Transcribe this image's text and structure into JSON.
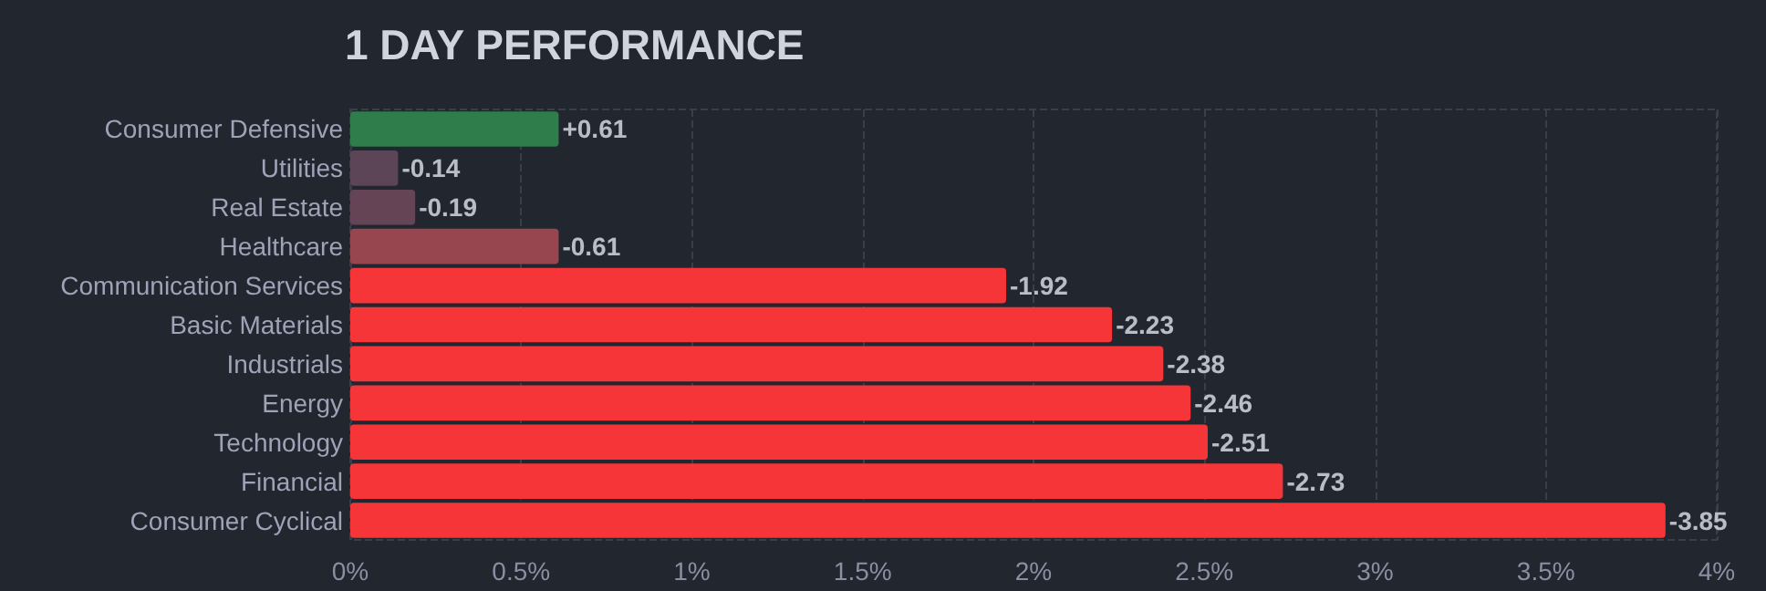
{
  "chart_data": {
    "type": "bar",
    "orientation": "horizontal",
    "title": "1 DAY PERFORMANCE",
    "categories": [
      "Consumer Defensive",
      "Utilities",
      "Real Estate",
      "Healthcare",
      "Communication Services",
      "Basic Materials",
      "Industrials",
      "Energy",
      "Technology",
      "Financial",
      "Consumer Cyclical"
    ],
    "values": [
      0.61,
      0.14,
      0.19,
      0.61,
      1.92,
      2.23,
      2.38,
      2.46,
      2.51,
      2.73,
      3.85
    ],
    "annotations": [
      {
        "text": "+0.61",
        "x": 0.61,
        "y": "Consumer Defensive"
      },
      {
        "text": "-0.14",
        "x": 0.14,
        "y": "Utilities"
      },
      {
        "text": "-0.19",
        "x": 0.19,
        "y": "Real Estate"
      },
      {
        "text": "-0.61",
        "x": 0.61,
        "y": "Healthcare"
      },
      {
        "text": "-1.92",
        "x": 1.92,
        "y": "Communication Services"
      },
      {
        "text": "-2.23",
        "x": 2.23,
        "y": "Basic Materials"
      },
      {
        "text": "-2.38",
        "x": 2.38,
        "y": "Industrials"
      },
      {
        "text": "-2.46",
        "x": 2.46,
        "y": "Energy"
      },
      {
        "text": "-2.51",
        "x": 2.51,
        "y": "Technology"
      },
      {
        "text": "-2.73",
        "x": 2.73,
        "y": "Financial"
      },
      {
        "text": "-3.85",
        "x": 3.85,
        "y": "Consumer Cyclical"
      }
    ],
    "colors": [
      "#307d4c",
      "#5c4556",
      "#654555",
      "#974650",
      "#f63538",
      "#f63538",
      "#f63538",
      "#f63538",
      "#f63538",
      "#f63538",
      "#f63538"
    ],
    "xlim": [
      0,
      4
    ],
    "xticks": [
      {
        "value": 0,
        "label": "0%"
      },
      {
        "value": 0.5,
        "label": "0.5%"
      },
      {
        "value": 1,
        "label": "1%"
      },
      {
        "value": 1.5,
        "label": "1.5%"
      },
      {
        "value": 2,
        "label": "2%"
      },
      {
        "value": 2.5,
        "label": "2.5%"
      },
      {
        "value": 3,
        "label": "3%"
      },
      {
        "value": 3.5,
        "label": "3.5%"
      },
      {
        "value": 4,
        "label": "4%"
      }
    ],
    "grid": "x"
  }
}
